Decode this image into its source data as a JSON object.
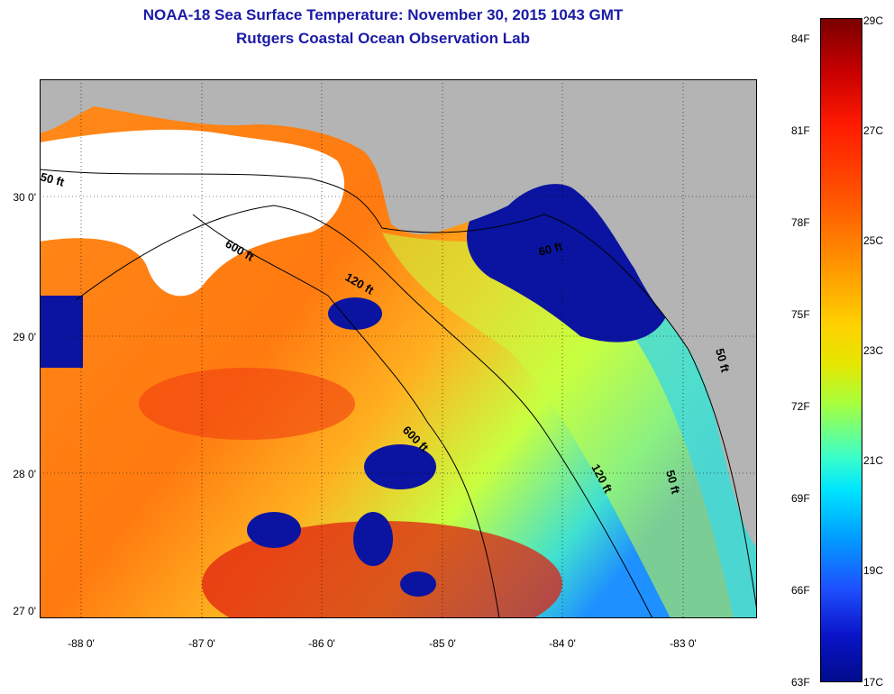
{
  "header": {
    "title": "NOAA-18 Sea Surface Temperature:  November 30, 2015 1043 GMT",
    "subtitle": "Rutgers Coastal Ocean Observation Lab"
  },
  "map": {
    "lat_labels": [
      "30 0'",
      "29 0'",
      "28 0'",
      "27 0'"
    ],
    "lon_labels": [
      "-88 0'",
      "-87 0'",
      "-86 0'",
      "-85 0'",
      "-84 0'",
      "-83 0'"
    ],
    "contour_labels": [
      "50 ft",
      "600 ft",
      "120 ft",
      "60 ft",
      "600 ft",
      "120 ft",
      "50 ft",
      "50 ft"
    ],
    "colors": {
      "land": "#b4b4b4",
      "cloud": "#ffffff",
      "warm": "#ff7a10",
      "cold": "#0a14a0",
      "shelf": "#40e0d0"
    }
  },
  "colorbar": {
    "fahrenheit_labels": [
      "84F",
      "81F",
      "78F",
      "75F",
      "72F",
      "69F",
      "66F",
      "63F"
    ],
    "celsius_labels": [
      "29C",
      "27C",
      "25C",
      "23C",
      "21C",
      "19C",
      "17C"
    ]
  }
}
